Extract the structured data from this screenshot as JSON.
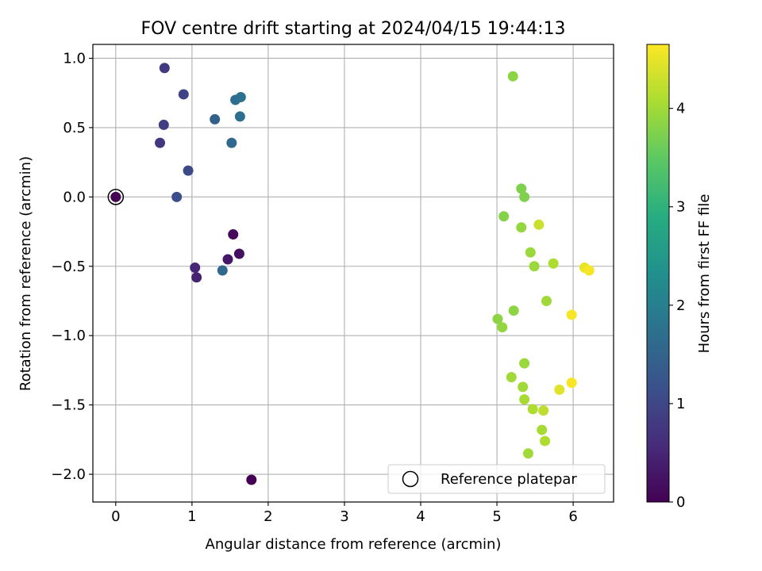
{
  "chart_data": {
    "type": "scatter",
    "title": "FOV centre drift starting at 2024/04/15 19:44:13",
    "xlabel": "Angular distance from reference (arcmin)",
    "ylabel": "Rotation from reference (arcmin)",
    "xlim": [
      -0.3,
      6.53
    ],
    "ylim": [
      -2.2,
      1.1
    ],
    "xticks": [
      0,
      1,
      2,
      3,
      4,
      5,
      6
    ],
    "xtick_labels": [
      "0",
      "1",
      "2",
      "3",
      "4",
      "5",
      "6"
    ],
    "yticks": [
      1.0,
      0.5,
      0.0,
      -0.5,
      -1.0,
      -1.5,
      -2.0
    ],
    "ytick_labels": [
      "1.0",
      "0.5",
      "0.0",
      "−0.5",
      "−1.0",
      "−1.5",
      "−2.0"
    ],
    "grid": true,
    "colormap": "viridis",
    "colorbar": {
      "label": "Hours from first FF file",
      "range": [
        0,
        4.65
      ],
      "ticks": [
        0,
        1,
        2,
        3,
        4
      ],
      "tick_labels": [
        "0",
        "1",
        "2",
        "3",
        "4"
      ]
    },
    "legend": {
      "position": "lower-right",
      "entries": [
        "Reference platepar"
      ]
    },
    "reference_point": {
      "x": 0,
      "y": 0,
      "hours": 0
    },
    "points": [
      {
        "x": 1.78,
        "y": -2.04,
        "hours": 0.0
      },
      {
        "x": 1.54,
        "y": -0.27,
        "hours": 0.1
      },
      {
        "x": 1.62,
        "y": -0.41,
        "hours": 0.2
      },
      {
        "x": 1.47,
        "y": -0.45,
        "hours": 0.3
      },
      {
        "x": 1.06,
        "y": -0.58,
        "hours": 0.45
      },
      {
        "x": 1.04,
        "y": -0.51,
        "hours": 0.5
      },
      {
        "x": 0.58,
        "y": 0.39,
        "hours": 0.75
      },
      {
        "x": 0.64,
        "y": 0.93,
        "hours": 0.8
      },
      {
        "x": 0.63,
        "y": 0.52,
        "hours": 0.85
      },
      {
        "x": 0.89,
        "y": 0.74,
        "hours": 0.95
      },
      {
        "x": 0.95,
        "y": 0.19,
        "hours": 1.05
      },
      {
        "x": 0.8,
        "y": 0.0,
        "hours": 1.1
      },
      {
        "x": 1.3,
        "y": 0.56,
        "hours": 1.45
      },
      {
        "x": 1.52,
        "y": 0.39,
        "hours": 1.6
      },
      {
        "x": 1.57,
        "y": 0.7,
        "hours": 1.65
      },
      {
        "x": 1.64,
        "y": 0.72,
        "hours": 1.75
      },
      {
        "x": 1.63,
        "y": 0.58,
        "hours": 1.7
      },
      {
        "x": 1.4,
        "y": -0.53,
        "hours": 1.6
      },
      {
        "x": 5.21,
        "y": 0.87,
        "hours": 3.85
      },
      {
        "x": 5.32,
        "y": 0.06,
        "hours": 3.75
      },
      {
        "x": 5.36,
        "y": 0.0,
        "hours": 3.75
      },
      {
        "x": 5.09,
        "y": -0.14,
        "hours": 3.8
      },
      {
        "x": 5.32,
        "y": -0.22,
        "hours": 3.9
      },
      {
        "x": 5.55,
        "y": -0.2,
        "hours": 4.3
      },
      {
        "x": 5.44,
        "y": -0.4,
        "hours": 3.95
      },
      {
        "x": 5.49,
        "y": -0.5,
        "hours": 3.95
      },
      {
        "x": 5.74,
        "y": -0.48,
        "hours": 4.1
      },
      {
        "x": 6.15,
        "y": -0.51,
        "hours": 4.5
      },
      {
        "x": 6.21,
        "y": -0.53,
        "hours": 4.6
      },
      {
        "x": 5.65,
        "y": -0.75,
        "hours": 4.0
      },
      {
        "x": 5.22,
        "y": -0.82,
        "hours": 3.85
      },
      {
        "x": 5.01,
        "y": -0.88,
        "hours": 3.85
      },
      {
        "x": 5.07,
        "y": -0.94,
        "hours": 3.9
      },
      {
        "x": 5.98,
        "y": -0.85,
        "hours": 4.6
      },
      {
        "x": 5.36,
        "y": -1.2,
        "hours": 3.95
      },
      {
        "x": 5.19,
        "y": -1.3,
        "hours": 4.0
      },
      {
        "x": 5.34,
        "y": -1.37,
        "hours": 4.0
      },
      {
        "x": 5.36,
        "y": -1.46,
        "hours": 4.05
      },
      {
        "x": 5.47,
        "y": -1.53,
        "hours": 4.1
      },
      {
        "x": 5.61,
        "y": -1.54,
        "hours": 4.2
      },
      {
        "x": 5.82,
        "y": -1.39,
        "hours": 4.45
      },
      {
        "x": 5.98,
        "y": -1.34,
        "hours": 4.6
      },
      {
        "x": 5.59,
        "y": -1.68,
        "hours": 4.05
      },
      {
        "x": 5.63,
        "y": -1.76,
        "hours": 4.1
      },
      {
        "x": 5.41,
        "y": -1.85,
        "hours": 4.0
      }
    ]
  }
}
